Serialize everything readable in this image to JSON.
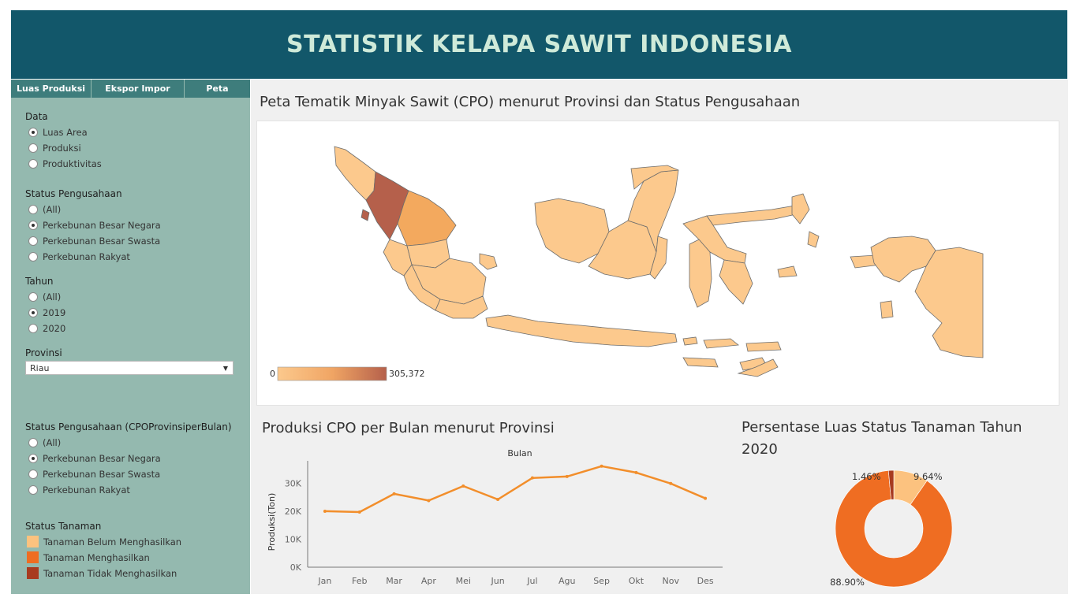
{
  "header": {
    "title": "STATISTIK KELAPA SAWIT INDONESIA"
  },
  "tabs": [
    {
      "label": "Luas Produksi"
    },
    {
      "label": "Ekspor Impor"
    },
    {
      "label": "Peta"
    }
  ],
  "filters": {
    "data": {
      "label": "Data",
      "options": [
        {
          "label": "Luas Area",
          "selected": true
        },
        {
          "label": "Produksi",
          "selected": false
        },
        {
          "label": "Produktivitas",
          "selected": false
        }
      ]
    },
    "status": {
      "label": "Status Pengusahaan",
      "options": [
        {
          "label": "(All)",
          "selected": false
        },
        {
          "label": "Perkebunan Besar Negara",
          "selected": true
        },
        {
          "label": "Perkebunan Besar Swasta",
          "selected": false
        },
        {
          "label": "Perkebunan Rakyat",
          "selected": false
        }
      ]
    },
    "tahun": {
      "label": "Tahun",
      "options": [
        {
          "label": "(All)",
          "selected": false
        },
        {
          "label": "2019",
          "selected": true
        },
        {
          "label": "2020",
          "selected": false
        }
      ]
    },
    "provinsi": {
      "label": "Provinsi",
      "value": "Riau"
    },
    "status_bulan": {
      "label": "Status Pengusahaan (CPOProvinsiperBulan)",
      "options": [
        {
          "label": "(All)",
          "selected": false
        },
        {
          "label": "Perkebunan Besar Negara",
          "selected": true
        },
        {
          "label": "Perkebunan Besar Swasta",
          "selected": false
        },
        {
          "label": "Perkebunan Rakyat",
          "selected": false
        }
      ]
    },
    "status_tanaman": {
      "label": "Status Tanaman",
      "items": [
        {
          "label": "Tanaman Belum Menghasilkan",
          "color": "#fcc27f"
        },
        {
          "label": "Tanaman Menghasilkan",
          "color": "#ef6d22"
        },
        {
          "label": "Tanaman Tidak Menghasilkan",
          "color": "#a83b20"
        }
      ]
    }
  },
  "map": {
    "title": "Peta Tematik Minyak Sawit (CPO) menurut Provinsi dan Status Pengusahaan",
    "legend_min": "0",
    "legend_max": "305,372",
    "colors": {
      "low": "#fcc98d",
      "mid": "#f3a95e",
      "high": "#b5604b",
      "stroke": "#6d6d6d"
    }
  },
  "chart_data": [
    {
      "type": "line",
      "title": "Produksi CPO per Bulan menurut Provinsi",
      "xlabel": "Bulan",
      "ylabel": "Produksi(Ton)",
      "categories": [
        "Jan",
        "Feb",
        "Mar",
        "Apr",
        "Mei",
        "Jun",
        "Jul",
        "Agu",
        "Sep",
        "Okt",
        "Nov",
        "Des"
      ],
      "values": [
        20000,
        19700,
        26200,
        23800,
        29000,
        24200,
        31900,
        32400,
        36100,
        33800,
        29900,
        24600
      ],
      "yticks": [
        0,
        10000,
        20000,
        30000
      ],
      "ytick_labels": [
        "0K",
        "10K",
        "20K",
        "30K"
      ],
      "ylim": [
        0,
        38000
      ],
      "color": "#f28e2b",
      "grid": false
    },
    {
      "type": "pie",
      "title": "Persentase Luas Status Tanaman Tahun 2020",
      "donut": true,
      "slices": [
        {
          "label": "Tanaman Belum Menghasilkan",
          "value": 9.64,
          "display": "9.64%",
          "color": "#fcc27f"
        },
        {
          "label": "Tanaman Menghasilkan",
          "value": 88.9,
          "display": "88.90%",
          "color": "#ef6d22"
        },
        {
          "label": "Tanaman Tidak Menghasilkan",
          "value": 1.46,
          "display": "1.46%",
          "color": "#a83b20"
        }
      ]
    }
  ]
}
